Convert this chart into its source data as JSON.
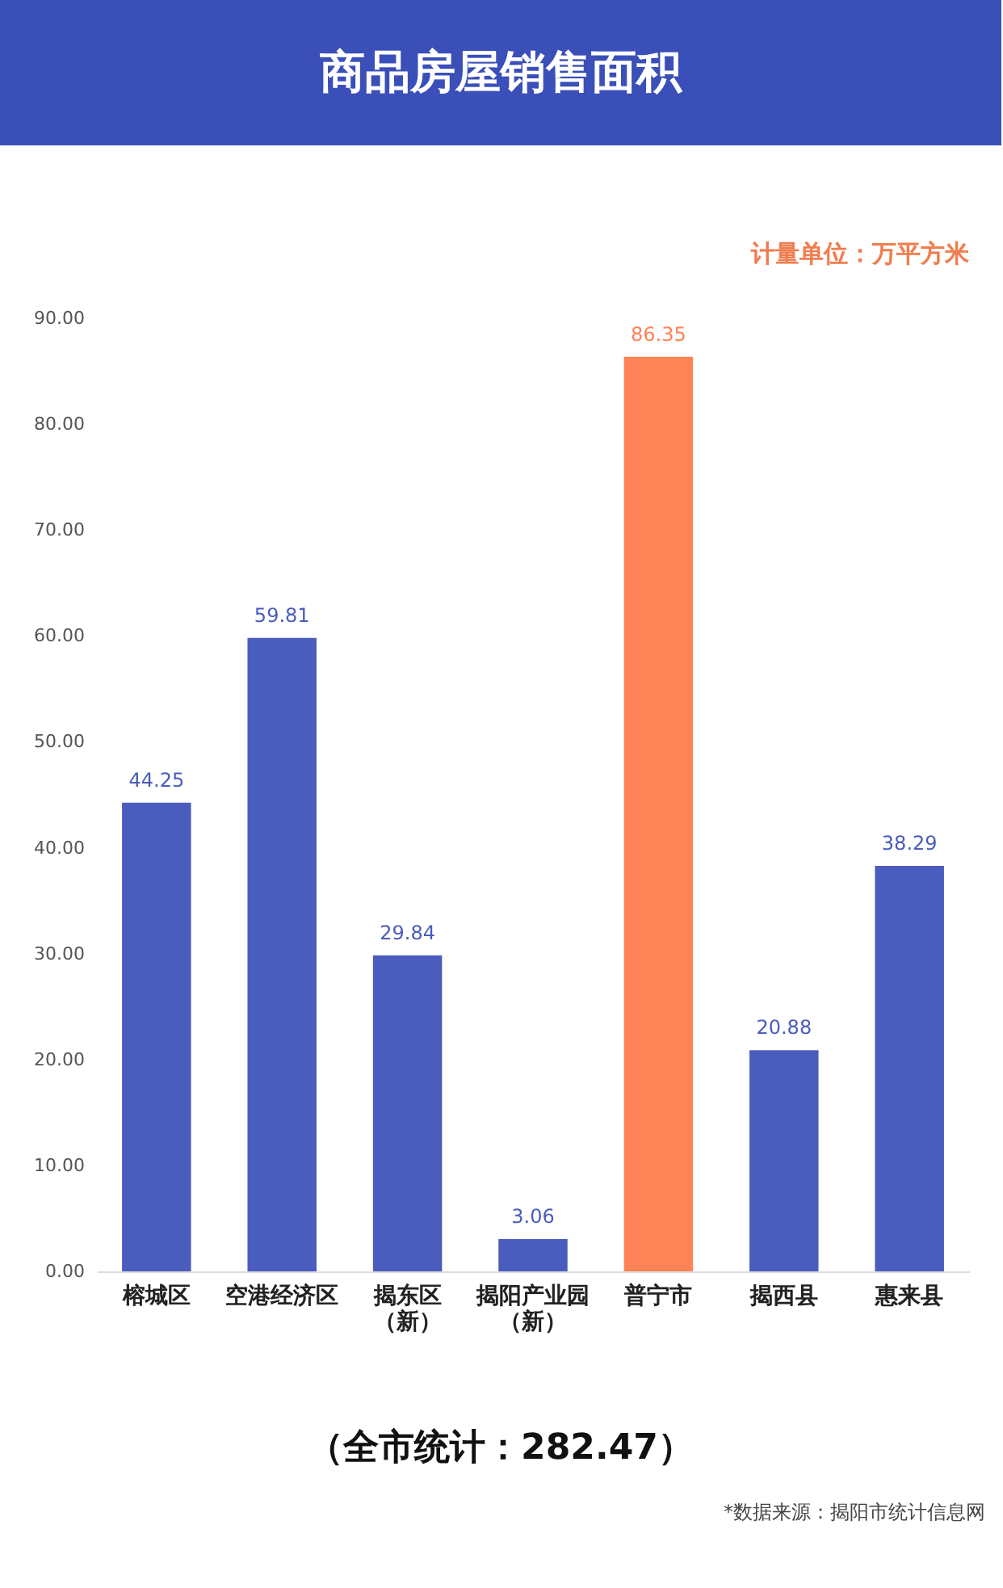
{
  "chart_data": {
    "type": "bar",
    "title": "商品房屋销售面积",
    "categories": [
      "榕城区",
      "空港经济区",
      "揭东区（新）",
      "揭阳产业园（新）",
      "普宁市",
      "揭西县",
      "惠来县"
    ],
    "values": [
      44.25,
      59.81,
      29.84,
      3.06,
      86.35,
      20.88,
      38.29
    ],
    "colors": [
      "#4a5cbd",
      "#4a5cbd",
      "#4a5cbd",
      "#4a5cbd",
      "#ff8356",
      "#4a5cbd",
      "#4a5cbd"
    ],
    "ylim": [
      0,
      90
    ],
    "yticks": [
      {
        "value": 0,
        "label": "0.00"
      },
      {
        "value": 10,
        "label": "10.00"
      },
      {
        "value": 20,
        "label": "20.00"
      },
      {
        "value": 30,
        "label": "30.00"
      },
      {
        "value": 40,
        "label": "40.00"
      },
      {
        "value": 50,
        "label": "50.00"
      },
      {
        "value": 60,
        "label": "60.00"
      },
      {
        "value": 70,
        "label": "70.00"
      },
      {
        "value": 80,
        "label": "80.00"
      },
      {
        "value": 90,
        "label": "90.00"
      }
    ],
    "data_labels": true,
    "grid": false,
    "annotations": [
      "计量单位：万平方米",
      "（全市统计：282.47）",
      "*数据来源：揭阳市统计信息网"
    ]
  }
}
